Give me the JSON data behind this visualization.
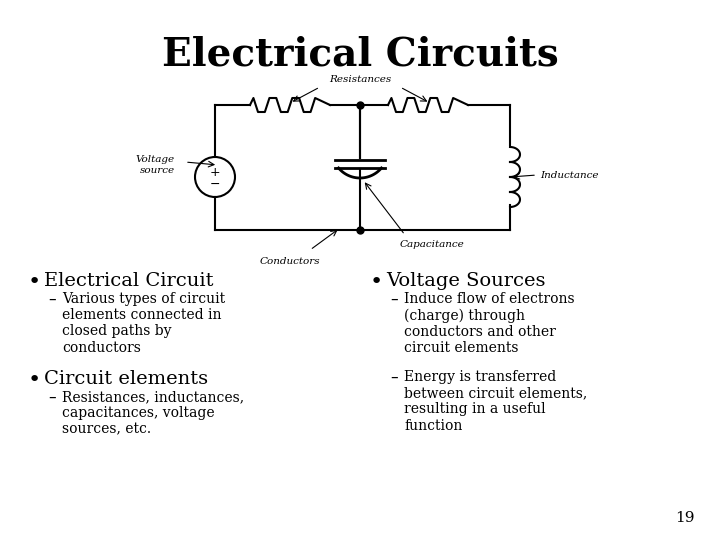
{
  "title": "Electrical Circuits",
  "title_fontsize": 28,
  "title_fontweight": "bold",
  "bg_color": "#ffffff",
  "text_color": "#000000",
  "bullet1_header": "Electrical Circuit",
  "bullet1_sub": "Various types of circuit\nelements connected in\nclosed paths by\nconductors",
  "bullet2_header": "Circuit elements",
  "bullet2_sub": "Resistances, inductances,\ncapacitances, voltage\nsources, etc.",
  "bullet3_header": "Voltage Sources",
  "bullet3_sub": "Induce flow of electrons\n(charge) through\nconductors and other\ncircuit elements",
  "bullet4_sub": "Energy is transferred\nbetween circuit elements,\nresulting in a useful\nfunction",
  "page_number": "19",
  "diagram_circuit_color": "#000000",
  "label_resistances": "Resistances",
  "label_conductors": "Conductors",
  "label_capacitance": "Capacitance",
  "label_voltage": "Voltage\nsource",
  "label_inductance": "Inductance"
}
